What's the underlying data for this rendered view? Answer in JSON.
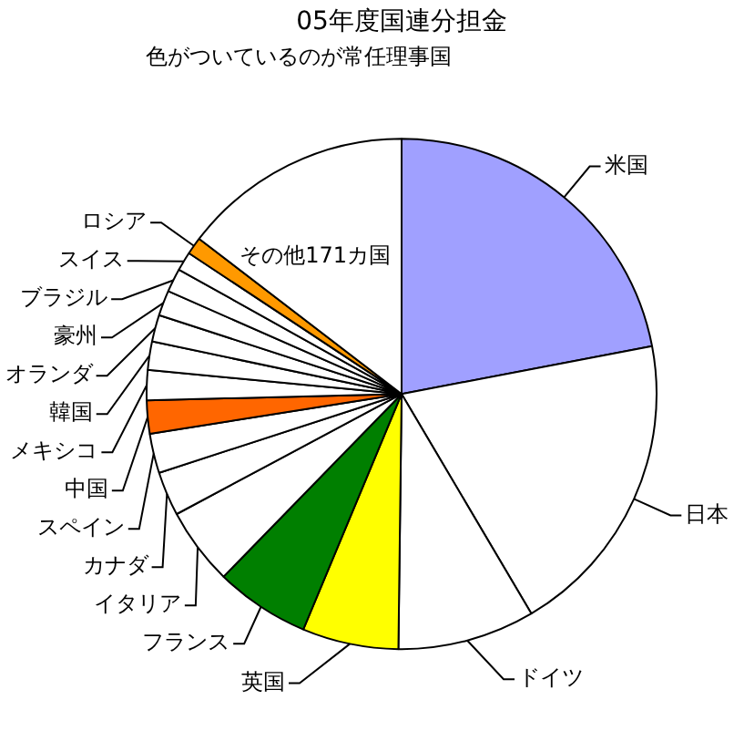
{
  "chart_data": {
    "type": "pie",
    "title": "05年度国連分担金",
    "subtitle": "色がついているのが常任理事国",
    "categories": [
      "米国",
      "日本",
      "ドイツ",
      "英国",
      "フランス",
      "イタリア",
      "カナダ",
      "スペイン",
      "中国",
      "メキシコ",
      "韓国",
      "オランダ",
      "豪州",
      "ブラジル",
      "スイス",
      "ロシア",
      "その他171カ国"
    ],
    "values": [
      22.0,
      19.5,
      8.7,
      6.1,
      6.0,
      4.9,
      2.8,
      2.5,
      2.1,
      1.9,
      1.8,
      1.7,
      1.6,
      1.5,
      1.2,
      1.1,
      14.6
    ],
    "colors": [
      "#a0a0ff",
      "#ffffff",
      "#ffffff",
      "#ffff00",
      "#007f00",
      "#ffffff",
      "#ffffff",
      "#ffffff",
      "#ff6600",
      "#ffffff",
      "#ffffff",
      "#ffffff",
      "#ffffff",
      "#ffffff",
      "#ffffff",
      "#ff9900",
      "#ffffff"
    ],
    "legend": false
  }
}
